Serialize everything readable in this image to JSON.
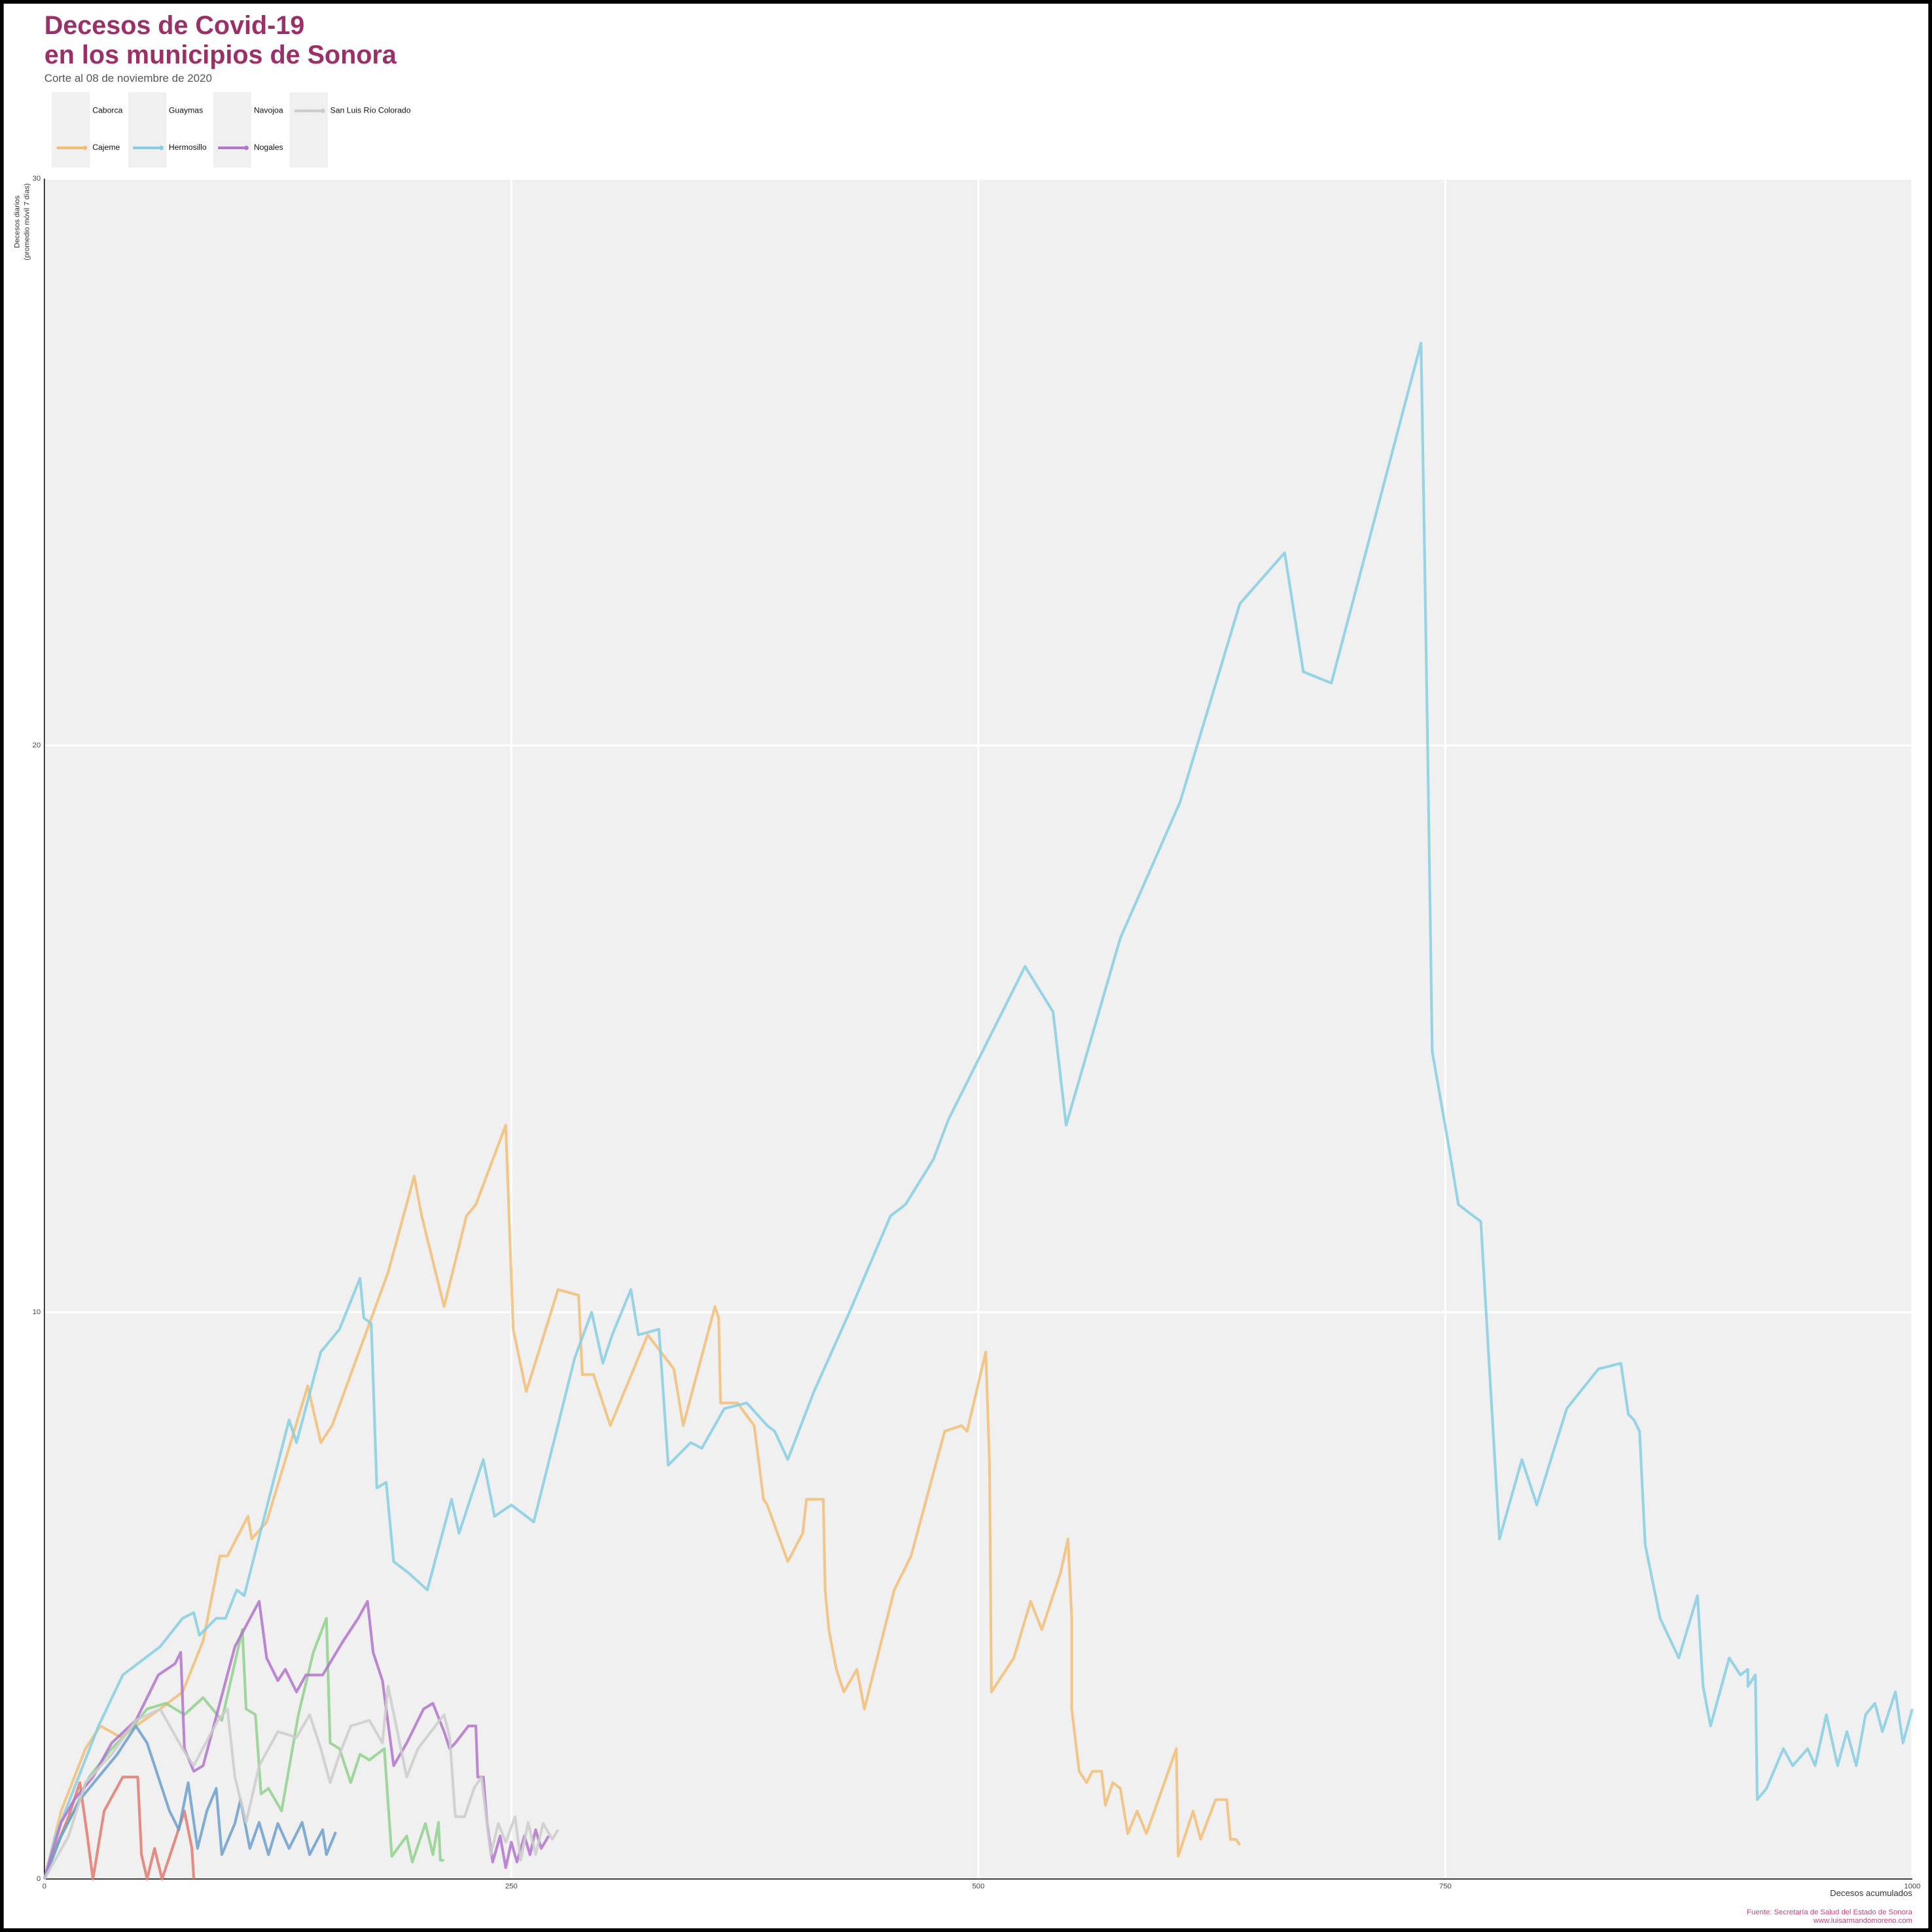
{
  "chart_data": {
    "type": "line",
    "title": [
      "Decesos de Covid-19",
      "en los municipios de Sonora"
    ],
    "subtitle": "Corte al 08 de noviembre de 2020",
    "x_label": "Decesos acumulados",
    "y_label": [
      "Decesos diarios",
      "(promedio móvil 7 días)"
    ],
    "caption": [
      "Fuente: Secretaría de Salud del Estado de Sonora",
      "www.luisarmandomoreno.com"
    ],
    "xlim": [
      0,
      1000
    ],
    "ylim": [
      0,
      30
    ],
    "xticks": [
      0,
      250,
      500,
      750,
      1000
    ],
    "yticks": [
      0,
      10,
      20,
      30
    ],
    "grid": true,
    "series": [
      {
        "name": "Caborca",
        "color": "#e27a6f",
        "x": [
          0,
          6,
          13,
          19,
          23,
          26,
          32,
          42,
          50,
          52,
          55,
          59,
          63,
          69,
          75,
          79,
          80
        ],
        "values": [
          0,
          0.54,
          1.1,
          1.7,
          0.76,
          0,
          1.2,
          1.8,
          1.8,
          0.43,
          0,
          0.54,
          0,
          0.59,
          1.2,
          0.54,
          0
        ]
      },
      {
        "name": "Cajeme",
        "color": "#f2be75",
        "x": [
          0,
          9,
          22,
          30,
          41,
          49,
          62,
          74,
          85,
          94,
          98,
          109,
          111,
          119,
          141,
          148,
          154,
          184,
          198,
          202,
          214,
          226,
          231,
          247,
          251,
          258,
          275,
          286,
          288,
          294,
          303,
          323,
          337,
          342,
          359,
          361,
          362,
          371,
          380,
          385,
          387,
          398,
          406,
          408,
          417,
          418,
          420,
          424,
          428,
          435,
          439,
          455,
          464,
          482,
          491,
          494,
          504,
          506,
          507,
          519,
          528,
          534,
          539,
          544,
          548,
          550,
          550,
          554,
          558,
          561,
          566,
          568,
          572,
          576,
          580,
          585,
          590,
          606,
          607,
          611,
          615,
          619,
          627,
          633,
          635,
          638,
          640
        ],
        "values": [
          0,
          1.2,
          2.3,
          2.7,
          2.5,
          2.7,
          3.0,
          3.3,
          4.2,
          5.7,
          5.7,
          6.4,
          6.0,
          6.3,
          8.7,
          7.7,
          8.0,
          10.7,
          12.4,
          11.7,
          10.1,
          11.7,
          11.9,
          13.3,
          9.7,
          8.6,
          10.4,
          10.3,
          8.9,
          8.9,
          8.0,
          9.6,
          9.0,
          8.0,
          10.1,
          9.9,
          8.4,
          8.4,
          8.0,
          6.7,
          6.6,
          5.6,
          6.1,
          6.7,
          6.7,
          5.1,
          4.4,
          3.7,
          3.3,
          3.7,
          3.0,
          5.1,
          5.7,
          7.9,
          8.0,
          7.9,
          9.3,
          7.3,
          3.3,
          3.9,
          4.9,
          4.4,
          4.9,
          5.4,
          6.0,
          4.6,
          3.0,
          1.9,
          1.7,
          1.9,
          1.9,
          1.3,
          1.7,
          1.6,
          0.8,
          1.2,
          0.8,
          2.3,
          0.4,
          0.8,
          1.2,
          0.7,
          1.4,
          1.4,
          0.7,
          0.7,
          0.6
        ]
      },
      {
        "name": "Guaymas",
        "color": "#8fd18c",
        "x": [
          0,
          9,
          16,
          24,
          36,
          45,
          55,
          65,
          75,
          85,
          95,
          106,
          108,
          113,
          116,
          120,
          127,
          136,
          144,
          151,
          153,
          158,
          164,
          169,
          174,
          182,
          186,
          194,
          197,
          204,
          208,
          211,
          212,
          214
        ],
        "values": [
          0,
          0.76,
          1.2,
          1.8,
          2.3,
          2.6,
          3.0,
          3.1,
          2.9,
          3.2,
          2.8,
          4.4,
          3.0,
          2.9,
          1.5,
          1.6,
          1.2,
          2.9,
          4.0,
          4.6,
          2.4,
          2.3,
          1.7,
          2.2,
          2.1,
          2.3,
          0.4,
          0.76,
          0.3,
          0.98,
          0.43,
          1.0,
          0.33,
          0.33
        ]
      },
      {
        "name": "Hermosillo",
        "color": "#86cfe3",
        "x": [
          0,
          6,
          29,
          42,
          62,
          74,
          80,
          83,
          92,
          97,
          103,
          107,
          131,
          135,
          148,
          158,
          169,
          171,
          175,
          178,
          183,
          187,
          195,
          205,
          218,
          222,
          235,
          241,
          250,
          262,
          284,
          293,
          299,
          304,
          314,
          318,
          329,
          334,
          346,
          352,
          364,
          376,
          387,
          391,
          398,
          412,
          431,
          453,
          461,
          476,
          484,
          525,
          540,
          547,
          576,
          608,
          640,
          664,
          674,
          689,
          737,
          739,
          741,
          743,
          752,
          757,
          769,
          779,
          791,
          799,
          815,
          832,
          844,
          848,
          851,
          854,
          857,
          865,
          875,
          885,
          888,
          892,
          902,
          908,
          912,
          912,
          916,
          917,
          922,
          931,
          936,
          944,
          948,
          954,
          960,
          965,
          970,
          975,
          980,
          984,
          991,
          995,
          1000
        ],
        "values": [
          0,
          0.76,
          2.7,
          3.6,
          4.1,
          4.6,
          4.7,
          4.3,
          4.6,
          4.6,
          5.1,
          5.0,
          8.1,
          7.7,
          9.3,
          9.7,
          10.6,
          9.9,
          9.8,
          6.9,
          7.0,
          5.6,
          5.4,
          5.1,
          6.7,
          6.1,
          7.4,
          6.4,
          6.6,
          6.3,
          9.2,
          10.0,
          9.1,
          9.6,
          10.4,
          9.6,
          9.7,
          7.3,
          7.7,
          7.6,
          8.3,
          8.4,
          8.0,
          7.9,
          7.4,
          8.6,
          10.0,
          11.7,
          11.9,
          12.7,
          13.4,
          16.1,
          15.3,
          13.3,
          16.6,
          19.0,
          22.5,
          23.4,
          21.3,
          21.1,
          27.1,
          23.2,
          19.0,
          14.6,
          12.9,
          11.9,
          11.6,
          6.0,
          7.4,
          6.6,
          8.3,
          9.0,
          9.1,
          8.2,
          8.1,
          7.9,
          5.9,
          4.6,
          3.9,
          5.0,
          3.4,
          2.7,
          3.9,
          3.6,
          3.7,
          3.4,
          3.6,
          1.4,
          1.6,
          2.3,
          2.0,
          2.3,
          2.0,
          2.9,
          2.0,
          2.6,
          2.0,
          2.9,
          3.1,
          2.6,
          3.3,
          2.4,
          3.0
        ]
      },
      {
        "name": "Navojoa",
        "color": "#6c9fce",
        "x": [
          0,
          9,
          19,
          29,
          39,
          49,
          55,
          62,
          67,
          72,
          77,
          82,
          87,
          92,
          95,
          102,
          105,
          110,
          115,
          120,
          125,
          131,
          138,
          142,
          149,
          151,
          156
        ],
        "values": [
          0,
          0.76,
          1.4,
          1.8,
          2.2,
          2.7,
          2.4,
          1.7,
          1.2,
          0.87,
          1.7,
          0.54,
          1.2,
          1.6,
          0.43,
          0.98,
          1.4,
          0.54,
          1.0,
          0.43,
          0.98,
          0.54,
          1.0,
          0.43,
          0.87,
          0.43,
          0.83
        ]
      },
      {
        "name": "Nogales",
        "color": "#b274cc",
        "x": [
          0,
          9,
          16,
          26,
          36,
          49,
          61,
          70,
          73,
          75,
          80,
          85,
          102,
          115,
          119,
          125,
          129,
          135,
          140,
          149,
          160,
          168,
          173,
          176,
          181,
          187,
          194,
          203,
          208,
          214,
          217,
          220,
          227,
          231,
          232,
          235,
          237,
          240,
          244,
          247,
          250,
          253,
          257,
          260,
          263,
          266,
          270
        ],
        "values": [
          0,
          1.0,
          1.4,
          1.8,
          2.4,
          2.8,
          3.6,
          3.8,
          4.0,
          2.3,
          1.9,
          2.0,
          4.1,
          4.9,
          3.9,
          3.5,
          3.7,
          3.3,
          3.6,
          3.6,
          4.2,
          4.6,
          4.9,
          4.0,
          3.5,
          2.0,
          2.4,
          3.0,
          3.1,
          2.6,
          2.3,
          2.4,
          2.7,
          2.7,
          1.8,
          1.8,
          1.0,
          0.3,
          0.76,
          0.2,
          0.65,
          0.3,
          0.76,
          0.43,
          0.87,
          0.54,
          0.76
        ]
      },
      {
        "name": "San Luis Río Colorado",
        "color": "#cccccc",
        "x": [
          0,
          13,
          22,
          36,
          49,
          62,
          74,
          80,
          88,
          93,
          98,
          102,
          108,
          115,
          125,
          135,
          142,
          148,
          153,
          158,
          164,
          174,
          181,
          184,
          194,
          200,
          207,
          214,
          217,
          220,
          225,
          230,
          234,
          239,
          243,
          247,
          252,
          255,
          259,
          263,
          267,
          272,
          275
        ],
        "values": [
          0,
          0.76,
          1.7,
          2.2,
          2.8,
          3.0,
          2.3,
          2.0,
          2.5,
          2.8,
          3.0,
          1.8,
          1.0,
          2.0,
          2.6,
          2.5,
          2.9,
          2.3,
          1.7,
          2.2,
          2.7,
          2.8,
          2.4,
          3.4,
          1.8,
          2.3,
          2.6,
          2.9,
          2.5,
          1.1,
          1.1,
          1.6,
          1.8,
          0.43,
          0.98,
          0.65,
          1.1,
          0.33,
          1.0,
          0.43,
          0.98,
          0.7,
          0.87
        ]
      }
    ]
  }
}
